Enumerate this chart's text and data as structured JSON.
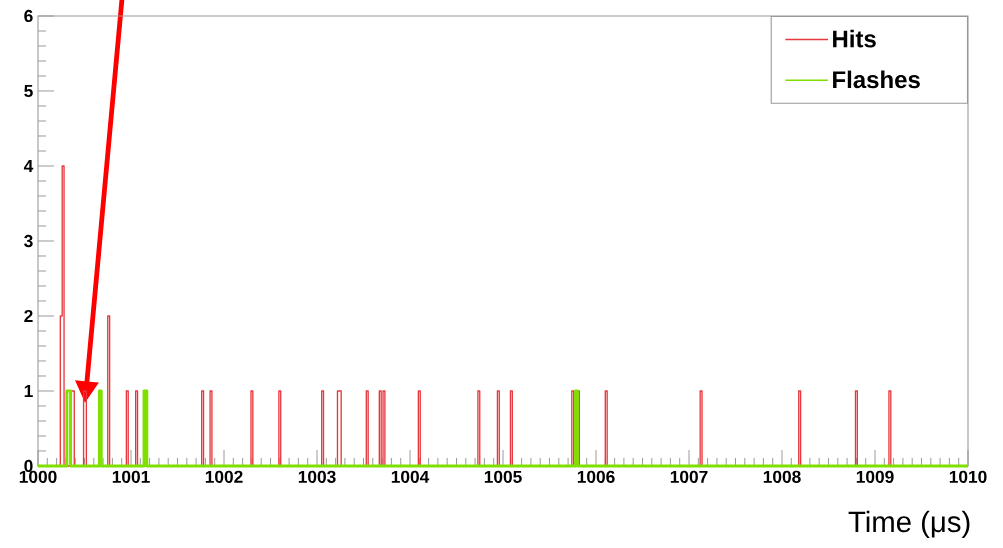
{
  "chart_data": {
    "type": "step",
    "xlabel": "Time (μs)",
    "series": [
      {
        "name": "Hits",
        "color": "#e8383d",
        "x": [
          1000,
          1000.24,
          1000.26,
          1000.28,
          1000.35,
          1000.39,
          1000.49,
          1000.52,
          1000.75,
          1000.77,
          1000.95,
          1000.97,
          1001.05,
          1001.07,
          1001.76,
          1001.78,
          1001.85,
          1001.87,
          1002.29,
          1002.31,
          1002.59,
          1002.61,
          1003.05,
          1003.07,
          1003.22,
          1003.26,
          1003.53,
          1003.55,
          1003.67,
          1003.69,
          1003.71,
          1003.73,
          1004.09,
          1004.11,
          1004.73,
          1004.75,
          1004.94,
          1004.96,
          1005.08,
          1005.1,
          1005.74,
          1005.76,
          1005.8,
          1005.82,
          1006.1,
          1006.12,
          1007.12,
          1007.14,
          1008.18,
          1008.2,
          1008.79,
          1008.81,
          1009.15,
          1009.17,
          1010
        ],
        "values": [
          0,
          2,
          4,
          0,
          1,
          0,
          1,
          0,
          2,
          0,
          1,
          0,
          1,
          0,
          1,
          0,
          1,
          0,
          1,
          0,
          1,
          0,
          1,
          0,
          1,
          0,
          1,
          0,
          1,
          0,
          1,
          0,
          1,
          0,
          1,
          0,
          1,
          0,
          1,
          0,
          1,
          0,
          1,
          0,
          1,
          0,
          1,
          0,
          1,
          0,
          1,
          0,
          1,
          0,
          0
        ]
      },
      {
        "name": "Flashes",
        "color": "#7fe000",
        "x": [
          1000,
          1000.31,
          1000.35,
          1000.66,
          1000.68,
          1001.14,
          1001.17,
          1005.78,
          1005.8,
          1010
        ],
        "values": [
          0,
          1,
          0,
          1,
          0,
          1,
          0,
          1,
          0,
          0
        ]
      }
    ],
    "xlim": [
      1000,
      1010
    ],
    "ylim": [
      0,
      6
    ],
    "xticks": [
      1000,
      1001,
      1002,
      1003,
      1004,
      1005,
      1006,
      1007,
      1008,
      1009,
      1010
    ],
    "yticks": [
      0,
      1,
      2,
      3,
      4,
      5,
      6
    ],
    "legend": "top right",
    "grid": false,
    "marker": "none",
    "line_style": "solid"
  }
}
